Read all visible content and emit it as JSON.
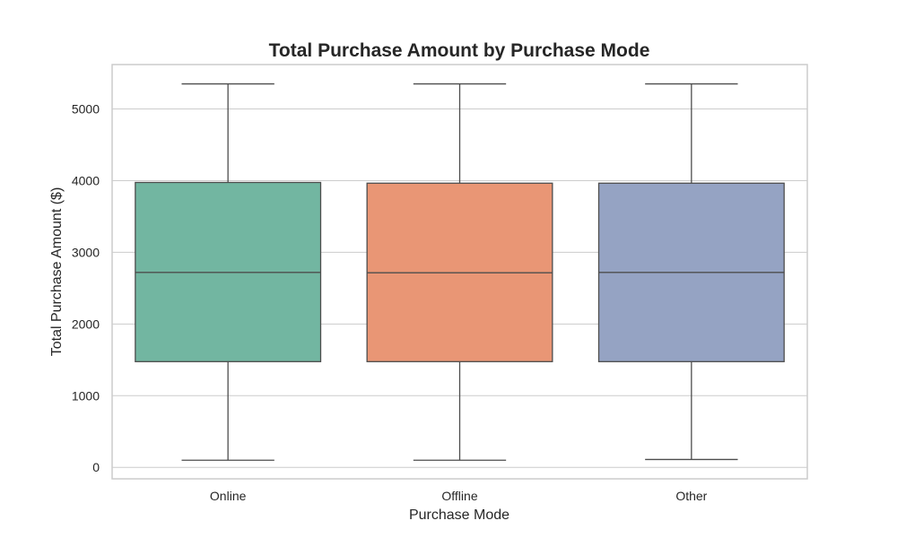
{
  "chart_data": {
    "type": "box",
    "title": "Total Purchase Amount by Purchase Mode",
    "xlabel": "Purchase Mode",
    "ylabel": "Total Purchase Amount ($)",
    "ylim": [
      -160,
      5620
    ],
    "yticks": [
      0,
      1000,
      2000,
      3000,
      4000,
      5000
    ],
    "grid": true,
    "categories": [
      "Online",
      "Offline",
      "Other"
    ],
    "colors": [
      "#72b6a1",
      "#e99675",
      "#95a3c3"
    ],
    "boxes": [
      {
        "category": "Online",
        "min": 100,
        "q1": 1475,
        "median": 2720,
        "q3": 3975,
        "max": 5350
      },
      {
        "category": "Offline",
        "min": 100,
        "q1": 1475,
        "median": 2715,
        "q3": 3965,
        "max": 5350
      },
      {
        "category": "Other",
        "min": 110,
        "q1": 1475,
        "median": 2720,
        "q3": 3965,
        "max": 5350
      }
    ]
  }
}
